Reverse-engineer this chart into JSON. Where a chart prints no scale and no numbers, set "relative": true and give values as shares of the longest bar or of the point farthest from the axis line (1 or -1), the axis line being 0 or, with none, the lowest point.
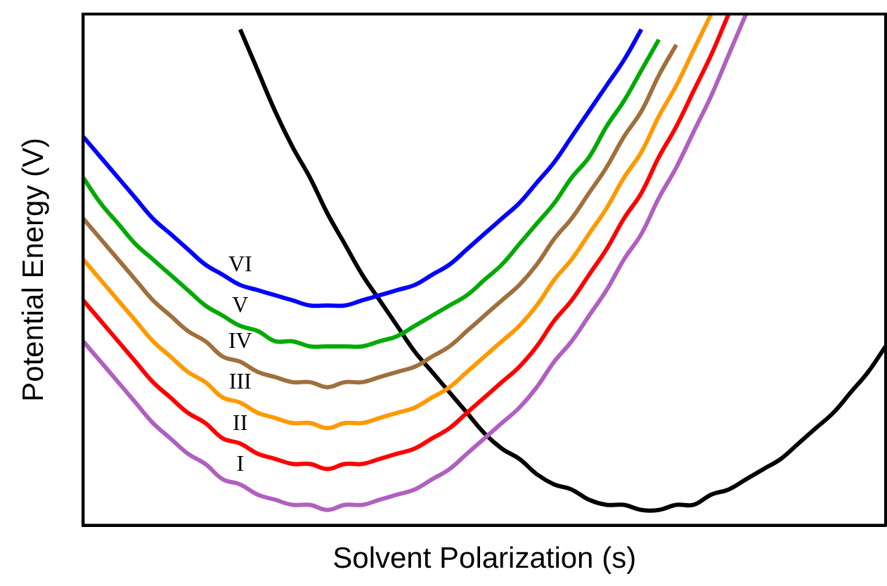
{
  "chart_data": {
    "type": "line",
    "relative": true,
    "xlabel": "Solvent Polarization (s)",
    "ylabel": "Potential Energy (V)",
    "legend": false,
    "grid": false,
    "marker": "none",
    "line_style": "solid",
    "categories": [
      null,
      null,
      null,
      null,
      null,
      null,
      null,
      null,
      null,
      null,
      null,
      null,
      null,
      null,
      null,
      null,
      null,
      null,
      null,
      null,
      null,
      null,
      null,
      null,
      null,
      null,
      null,
      null,
      null,
      null,
      null,
      null,
      null,
      null,
      null,
      null,
      null,
      null,
      null,
      null,
      null,
      null,
      null,
      null,
      null,
      null,
      null
    ],
    "series": [
      {
        "name": "VI",
        "color": "#0000ff",
        "values": [
          0.76,
          0.72,
          0.68,
          0.64,
          0.6,
          0.57,
          0.54,
          0.51,
          0.49,
          0.47,
          0.46,
          0.45,
          0.44,
          0.43,
          0.43,
          0.43,
          0.44,
          0.45,
          0.46,
          0.47,
          0.49,
          0.51,
          0.54,
          0.57,
          0.6,
          0.63,
          0.67,
          0.71,
          0.76,
          0.81,
          0.86,
          0.91,
          0.97,
          null,
          null,
          null,
          null,
          null,
          null,
          null,
          null,
          null,
          null,
          null,
          null,
          null,
          null
        ]
      },
      {
        "name": "V",
        "color": "#00aa00",
        "values": [
          0.68,
          0.63,
          0.59,
          0.55,
          0.52,
          0.49,
          0.46,
          0.43,
          0.41,
          0.39,
          0.38,
          0.36,
          0.36,
          0.35,
          0.35,
          0.35,
          0.35,
          0.36,
          0.37,
          0.39,
          0.41,
          0.43,
          0.45,
          0.48,
          0.51,
          0.55,
          0.59,
          0.63,
          0.68,
          0.72,
          0.78,
          0.83,
          0.89,
          0.95,
          null,
          null,
          null,
          null,
          null,
          null,
          null,
          null,
          null,
          null,
          null,
          null,
          null
        ]
      },
      {
        "name": "IV",
        "color": "#a0703c",
        "values": [
          0.6,
          0.56,
          0.52,
          0.48,
          0.44,
          0.41,
          0.38,
          0.36,
          0.33,
          0.32,
          0.3,
          0.29,
          0.28,
          0.28,
          0.27,
          0.28,
          0.28,
          0.29,
          0.3,
          0.31,
          0.33,
          0.35,
          0.38,
          0.41,
          0.44,
          0.47,
          0.51,
          0.56,
          0.6,
          0.65,
          0.7,
          0.76,
          0.81,
          0.88,
          0.94,
          null,
          null,
          null,
          null,
          null,
          null,
          null,
          null,
          null,
          null,
          null,
          null
        ]
      },
      {
        "name": "III",
        "color": "#ff9900",
        "values": [
          0.52,
          0.48,
          0.44,
          0.4,
          0.36,
          0.33,
          0.3,
          0.28,
          0.25,
          0.24,
          0.22,
          0.21,
          0.2,
          0.2,
          0.19,
          0.2,
          0.2,
          0.21,
          0.22,
          0.23,
          0.25,
          0.27,
          0.3,
          0.33,
          0.36,
          0.39,
          0.43,
          0.48,
          0.52,
          0.57,
          0.62,
          0.68,
          0.73,
          0.8,
          0.86,
          0.93,
          1.0,
          null,
          null,
          null,
          null,
          null,
          null,
          null,
          null,
          null,
          null
        ]
      },
      {
        "name": "II",
        "color": "#ff0000",
        "values": [
          0.44,
          0.4,
          0.36,
          0.32,
          0.28,
          0.25,
          0.22,
          0.2,
          0.17,
          0.16,
          0.14,
          0.13,
          0.12,
          0.12,
          0.11,
          0.12,
          0.12,
          0.13,
          0.14,
          0.15,
          0.17,
          0.19,
          0.22,
          0.25,
          0.28,
          0.31,
          0.35,
          0.4,
          0.44,
          0.49,
          0.54,
          0.6,
          0.65,
          0.72,
          0.78,
          0.85,
          0.92,
          1.0,
          null,
          null,
          null,
          null,
          null,
          null,
          null,
          null,
          null
        ]
      },
      {
        "name": "I",
        "color": "#b060c0",
        "values": [
          0.36,
          0.32,
          0.28,
          0.24,
          0.2,
          0.17,
          0.14,
          0.12,
          0.09,
          0.08,
          0.06,
          0.05,
          0.04,
          0.04,
          0.03,
          0.04,
          0.04,
          0.05,
          0.06,
          0.07,
          0.09,
          0.11,
          0.14,
          0.17,
          0.2,
          0.23,
          0.27,
          0.32,
          0.36,
          0.41,
          0.46,
          0.52,
          0.57,
          0.64,
          0.7,
          0.77,
          0.84,
          0.92,
          1.0,
          null,
          null,
          null,
          null,
          null,
          null,
          null,
          null
        ]
      },
      {
        "color": "#000000",
        "values": [
          null,
          null,
          null,
          null,
          null,
          null,
          null,
          null,
          null,
          0.97,
          0.89,
          0.81,
          0.74,
          0.68,
          0.61,
          0.55,
          0.49,
          0.44,
          0.39,
          0.34,
          0.3,
          0.26,
          0.22,
          0.18,
          0.15,
          0.13,
          0.1,
          0.08,
          0.07,
          0.05,
          0.04,
          0.04,
          0.03,
          0.03,
          0.04,
          0.04,
          0.06,
          0.07,
          0.09,
          0.11,
          0.13,
          0.16,
          0.19,
          0.22,
          0.26,
          0.3,
          0.35
        ]
      }
    ]
  }
}
